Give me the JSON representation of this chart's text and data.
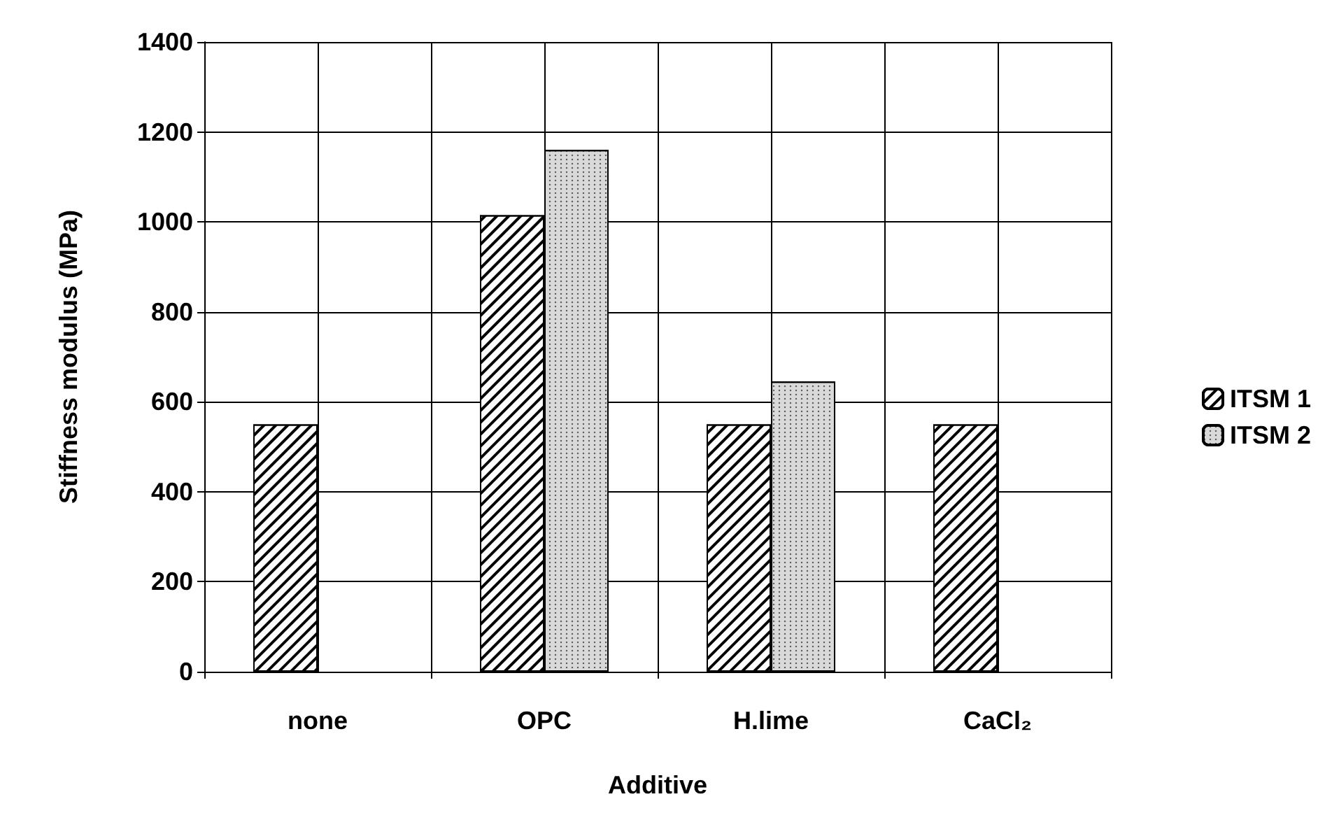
{
  "chart_data": {
    "type": "bar",
    "xlabel": "Additive",
    "ylabel": "Stiffness modulus (MPa)",
    "categories": [
      "none",
      "OPC",
      "H.lime",
      "CaCl₂"
    ],
    "series": [
      {
        "name": "ITSM 1",
        "color": "#ffffff",
        "values": [
          550,
          1015,
          550,
          550
        ]
      },
      {
        "name": "ITSM 2",
        "color": "#d9d9d9",
        "values": [
          null,
          1160,
          645,
          null
        ]
      }
    ],
    "ylim": [
      0,
      1400
    ],
    "yticks": [
      0,
      200,
      400,
      600,
      800,
      1000,
      1200,
      1400
    ],
    "grid": true,
    "legend": "right"
  }
}
